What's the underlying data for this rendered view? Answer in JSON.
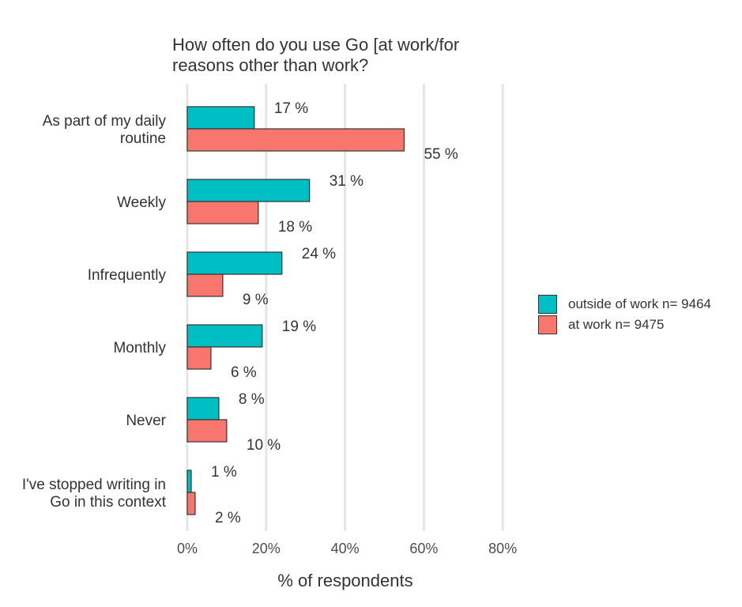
{
  "chart_data": {
    "type": "bar",
    "orientation": "horizontal",
    "title": [
      "How often do you use Go [at work/for",
      "reasons other than work?"
    ],
    "xlabel": "% of respondents",
    "ylabel": "",
    "xlim": [
      0,
      80
    ],
    "x_ticks": [
      "0%",
      "20%",
      "40%",
      "60%",
      "80%"
    ],
    "grid": "vertical",
    "legend_position": "right",
    "categories": [
      "As part of my daily routine",
      "Weekly",
      "Infrequently",
      "Monthly",
      "Never",
      "I've stopped writing in Go in this context"
    ],
    "category_lines": [
      [
        "As part of my daily",
        "routine"
      ],
      [
        "Weekly"
      ],
      [
        "Infrequently"
      ],
      [
        "Monthly"
      ],
      [
        "Never"
      ],
      [
        "I've stopped writing in",
        "Go in this context"
      ]
    ],
    "series": [
      {
        "name": "outside of work n= 9464",
        "color": "#00BFC4",
        "values": [
          17,
          31,
          24,
          19,
          8,
          1
        ],
        "labels": [
          "17 %",
          "31 %",
          "24 %",
          "19 %",
          "8 %",
          "1 %"
        ]
      },
      {
        "name": "at work n= 9475",
        "color": "#F8766D",
        "values": [
          55,
          18,
          9,
          6,
          10,
          2
        ],
        "labels": [
          "55 %",
          "18 %",
          "9 %",
          "6 %",
          "10 %",
          "2 %"
        ]
      }
    ]
  }
}
